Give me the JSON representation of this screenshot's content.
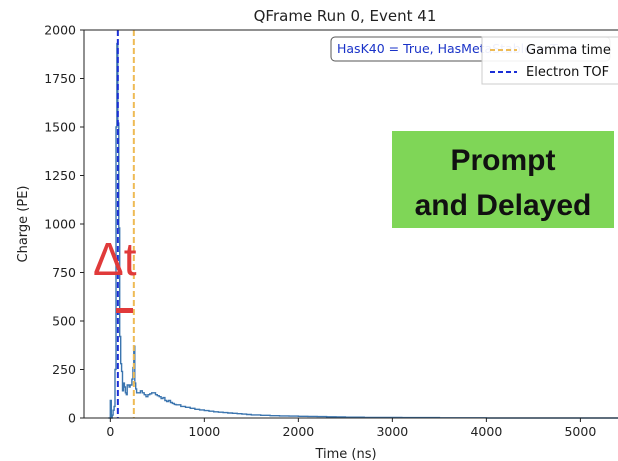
{
  "chart_data": {
    "type": "line",
    "title": "QFrame Run 0, Event 41",
    "xlabel": "Time (ns)",
    "ylabel": "Charge (PE)",
    "xlim": [
      -280,
      5400
    ],
    "ylim": [
      0,
      2000
    ],
    "x_ticks": [
      0,
      1000,
      2000,
      3000,
      4000,
      5000
    ],
    "y_ticks": [
      0,
      250,
      500,
      750,
      1000,
      1250,
      1500,
      1750,
      2000
    ],
    "grid": false,
    "legend_placement": "top-right",
    "series": [
      {
        "name": "",
        "color": "#3b75af",
        "style": "step",
        "x": [
          -20,
          0,
          10,
          20,
          30,
          40,
          50,
          60,
          70,
          80,
          90,
          100,
          110,
          120,
          130,
          140,
          150,
          160,
          170,
          180,
          190,
          200,
          210,
          220,
          230,
          240,
          250,
          260,
          270,
          280,
          300,
          320,
          340,
          360,
          380,
          400,
          420,
          440,
          460,
          480,
          500,
          520,
          540,
          560,
          580,
          600,
          620,
          640,
          660,
          680,
          700,
          750,
          800,
          850,
          900,
          950,
          1000,
          1050,
          1100,
          1150,
          1200,
          1250,
          1300,
          1350,
          1400,
          1450,
          1500,
          1600,
          1700,
          1800,
          1900,
          2000,
          2100,
          2200,
          2300,
          2400,
          2500,
          2700,
          2900,
          3100,
          3300,
          3500,
          3700,
          4000,
          4500,
          5000,
          5400
        ],
        "y": [
          0,
          90,
          0,
          15,
          40,
          60,
          250,
          1500,
          1930,
          1520,
          980,
          420,
          280,
          240,
          140,
          180,
          160,
          130,
          120,
          170,
          170,
          160,
          170,
          170,
          200,
          260,
          370,
          180,
          150,
          130,
          130,
          140,
          130,
          120,
          110,
          120,
          125,
          130,
          130,
          120,
          115,
          110,
          100,
          105,
          90,
          85,
          90,
          80,
          75,
          70,
          68,
          60,
          55,
          50,
          45,
          42,
          38,
          35,
          32,
          30,
          28,
          26,
          24,
          22,
          20,
          18,
          16,
          14,
          12,
          11,
          10,
          9,
          8,
          7,
          6,
          5,
          4,
          3,
          3,
          2,
          2,
          1,
          1,
          0,
          0,
          0,
          0
        ]
      },
      {
        "name": "Gamma time",
        "color": "#eebb55",
        "style": "vline",
        "x": 250
      },
      {
        "name": "Electron TOF",
        "color": "#1a2ed6",
        "style": "vline",
        "x": 80
      }
    ],
    "annotations": {
      "box_text": "HasK40 = True, HasMetaStable = True",
      "green_box_lines": [
        "Prompt",
        "and Delayed"
      ],
      "green_box_color": "#7fd657",
      "delta_label": "Δt",
      "delta_color": "#e03a3a"
    }
  }
}
